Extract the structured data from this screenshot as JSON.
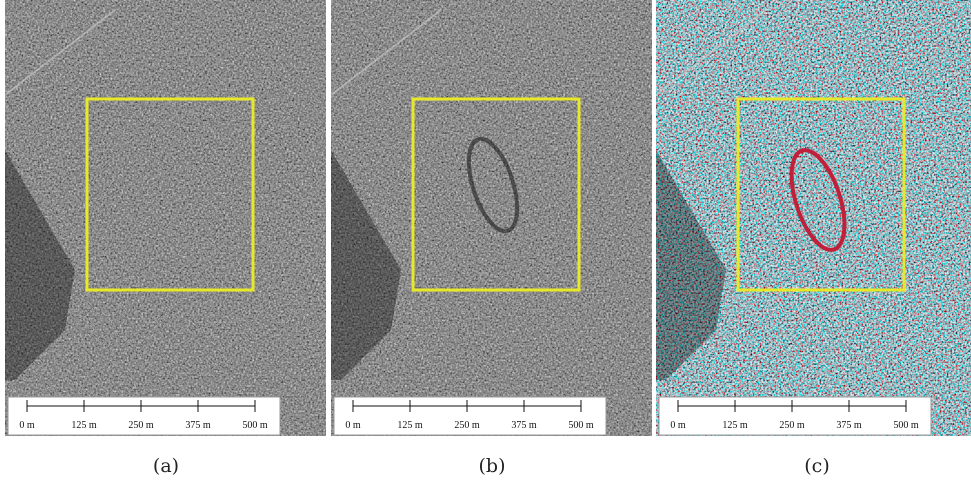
{
  "panels": [
    {
      "caption": "(a)",
      "scale_labels": [
        "0 m",
        "125 m",
        "250 m",
        "375 m",
        "500 m"
      ]
    },
    {
      "caption": "(b)",
      "scale_labels": [
        "0 m",
        "125 m",
        "250 m",
        "375 m",
        "500 m"
      ]
    },
    {
      "caption": "(c)",
      "scale_labels": [
        "0 m",
        "125 m",
        "250 m",
        "375 m",
        "500 m"
      ]
    }
  ]
}
